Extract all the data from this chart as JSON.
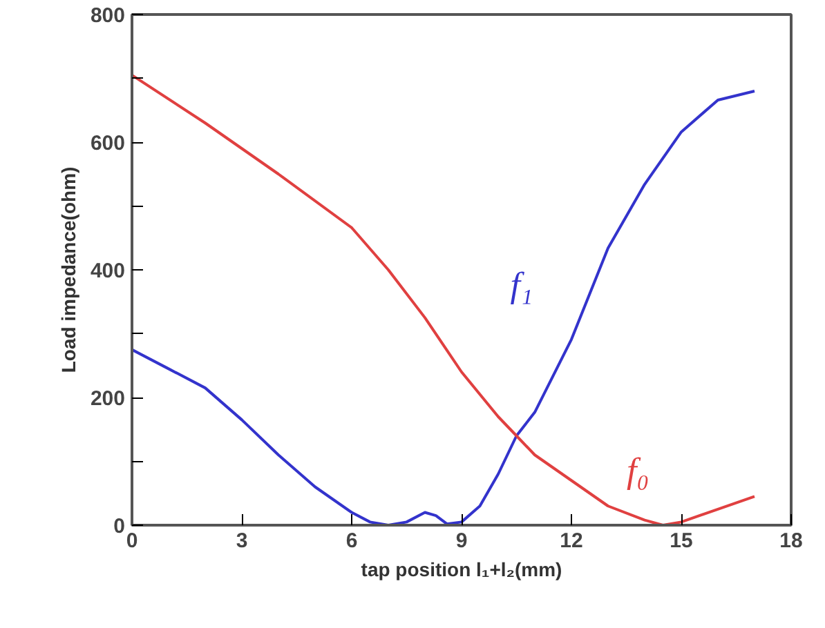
{
  "chart_data": {
    "type": "line",
    "xlabel": "tap position l₁+l₂(mm)",
    "ylabel": "Load impedance(ohm)",
    "xlim": [
      0,
      18
    ],
    "xticks": [
      0,
      3,
      6,
      9,
      12,
      15,
      18
    ],
    "ylim": [
      0,
      800
    ],
    "yticks": [
      0,
      {
        "value": 100,
        "label": null
      },
      200,
      {
        "value": 300,
        "label": null
      },
      400,
      {
        "value": 500,
        "label": null
      },
      600,
      {
        "value": 700,
        "label": null
      },
      800
    ],
    "grid": false,
    "legend": false,
    "marker": "none",
    "line_style": "solid",
    "series": [
      {
        "name": "f₁",
        "color": "#3333cc",
        "x": [
          0,
          1,
          2,
          3,
          4,
          5,
          6,
          6.5,
          7,
          7.5,
          8,
          8.3,
          8.6,
          9,
          9.5,
          10,
          10.5,
          11,
          12,
          13,
          14,
          15,
          16,
          17
        ],
        "values": [
          275,
          245,
          215,
          165,
          110,
          60,
          20,
          5,
          0,
          5,
          20,
          15,
          2,
          5,
          30,
          80,
          140,
          177,
          291,
          434,
          534,
          616,
          666,
          680
        ]
      },
      {
        "name": "f₀",
        "color": "#e04040",
        "x": [
          0,
          2,
          4,
          6,
          7,
          8,
          9,
          10,
          10.5,
          11,
          12,
          13,
          14,
          14.5,
          15,
          16,
          17
        ],
        "values": [
          705,
          630,
          550,
          466,
          400,
          325,
          240,
          170,
          140,
          110,
          70,
          30,
          8,
          0,
          5,
          25,
          45
        ]
      }
    ]
  }
}
